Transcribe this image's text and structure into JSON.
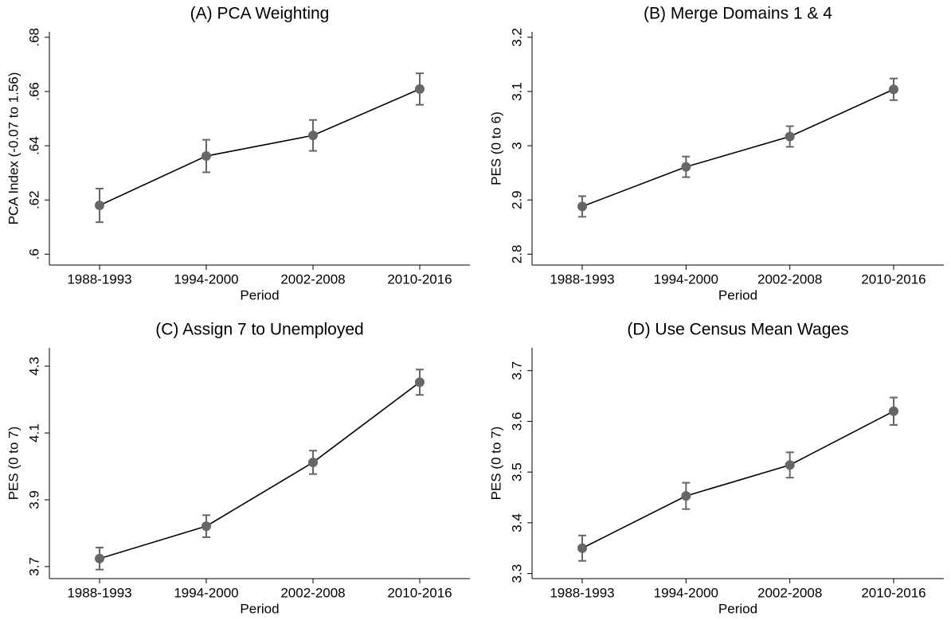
{
  "chart_data": [
    {
      "type": "line",
      "title": "(A) PCA Weighting",
      "xlabel": "Period",
      "ylabel": "PCA Index (-0.07 to 1.56)",
      "categories": [
        "1988-1993",
        "1994-2000",
        "2002-2008",
        "2010-2016"
      ],
      "values": [
        0.618,
        0.6362,
        0.6438,
        0.6609
      ],
      "errors": [
        0.0062,
        0.006,
        0.0057,
        0.0058
      ],
      "color": "#666666",
      "line_color": "#000000",
      "ylim": [
        0.596,
        0.682
      ],
      "yticks": [
        {
          "value": 0.6,
          "label": ".6"
        },
        {
          "value": 0.62,
          "label": ".62"
        },
        {
          "value": 0.64,
          "label": ".64"
        },
        {
          "value": 0.66,
          "label": ".66"
        },
        {
          "value": 0.68,
          "label": ".68"
        }
      ]
    },
    {
      "type": "line",
      "title": "(B) Merge Domains 1 & 4",
      "xlabel": "Period",
      "ylabel": "PES (0 to 6)",
      "categories": [
        "1988-1993",
        "1994-2000",
        "2002-2008",
        "2010-2016"
      ],
      "values": [
        2.888,
        2.961,
        3.017,
        3.104
      ],
      "errors": [
        0.019,
        0.019,
        0.019,
        0.02
      ],
      "color": "#666666",
      "line_color": "#000000",
      "ylim": [
        2.78,
        3.21
      ],
      "yticks": [
        2.8,
        2.9,
        3,
        3.1,
        3.2
      ]
    },
    {
      "type": "line",
      "title": "(C) Assign 7 to Unemployed",
      "xlabel": "Period",
      "ylabel": "PES (0 to 7)",
      "categories": [
        "1988-1993",
        "1994-2000",
        "2002-2008",
        "2010-2016"
      ],
      "values": [
        3.724,
        3.821,
        4.012,
        4.252
      ],
      "errors": [
        0.033,
        0.033,
        0.035,
        0.038
      ],
      "color": "#666666",
      "line_color": "#000000",
      "ylim": [
        3.664,
        4.355
      ],
      "yticks": [
        3.7,
        3.9,
        4.1,
        4.3
      ]
    },
    {
      "type": "line",
      "title": "(D) Use Census Mean Wages",
      "xlabel": "Period",
      "ylabel": "PES (0 to 7)",
      "categories": [
        "1988-1993",
        "1994-2000",
        "2002-2008",
        "2010-2016"
      ],
      "values": [
        3.35,
        3.453,
        3.514,
        3.62
      ],
      "errors": [
        0.025,
        0.026,
        0.025,
        0.027
      ],
      "color": "#666666",
      "line_color": "#000000",
      "ylim": [
        3.29,
        3.745
      ],
      "yticks": [
        3.3,
        3.4,
        3.5,
        3.6,
        3.7
      ]
    }
  ]
}
